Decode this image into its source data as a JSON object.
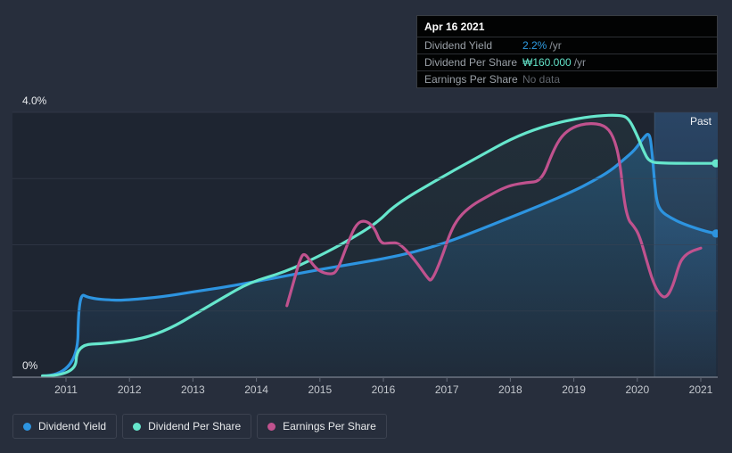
{
  "tooltip": {
    "date": "Apr 16 2021",
    "rows": [
      {
        "label": "Dividend Yield",
        "value": "2.2%",
        "suffix": "/yr",
        "color": "#2f9de4"
      },
      {
        "label": "Dividend Per Share",
        "value": "₩160.000",
        "suffix": "/yr",
        "color": "#63e2c8"
      },
      {
        "label": "Earnings Per Share",
        "value": "No data",
        "suffix": "",
        "color": "#5f646b"
      }
    ]
  },
  "axis": {
    "y_top": "4.0%",
    "y_bottom": "0%",
    "years": [
      "2011",
      "2012",
      "2013",
      "2014",
      "2015",
      "2016",
      "2017",
      "2018",
      "2019",
      "2020",
      "2021"
    ]
  },
  "past_label": "Past",
  "legend": [
    {
      "label": "Dividend Yield",
      "color": "#2d94e0"
    },
    {
      "label": "Dividend Per Share",
      "color": "#66e6cc"
    },
    {
      "label": "Earnings Per Share",
      "color": "#c0528e"
    }
  ],
  "colors": {
    "background": "#272e3c",
    "grid": "#3b4252",
    "axis_line": "#7b8290",
    "past_band": "#4898eb",
    "area_fill": "#2e94e0"
  },
  "chart_data": {
    "type": "line",
    "title": "Dividend history (yield and payments vs earnings)",
    "ylabel": "%",
    "ylim": [
      0,
      4
    ],
    "xlim": [
      2010.55,
      2021.3
    ],
    "x_ticks": [
      2011,
      2012,
      2013,
      2014,
      2015,
      2016,
      2017,
      2018,
      2019,
      2020,
      2021
    ],
    "grid": true,
    "legend_position": "bottom",
    "past_region_start_year": 2020.27,
    "series": [
      {
        "name": "Dividend Yield",
        "color": "#2d94e0",
        "end_dot": true,
        "area_fill": true,
        "fill_opacity": 0.3,
        "points": [
          [
            2010.63,
            0.02
          ],
          [
            2011.18,
            0.02
          ],
          [
            2011.2,
            1.28
          ],
          [
            2011.37,
            1.19
          ],
          [
            2011.79,
            1.16
          ],
          [
            2012.0,
            1.17
          ],
          [
            2012.49,
            1.21
          ],
          [
            2013.01,
            1.29
          ],
          [
            2013.5,
            1.36
          ],
          [
            2014.01,
            1.45
          ],
          [
            2014.46,
            1.53
          ],
          [
            2015.02,
            1.63
          ],
          [
            2015.58,
            1.72
          ],
          [
            2016.0,
            1.79
          ],
          [
            2016.49,
            1.89
          ],
          [
            2016.98,
            2.03
          ],
          [
            2017.47,
            2.21
          ],
          [
            2017.99,
            2.41
          ],
          [
            2018.49,
            2.6
          ],
          [
            2018.99,
            2.81
          ],
          [
            2019.3,
            2.96
          ],
          [
            2019.58,
            3.12
          ],
          [
            2019.79,
            3.29
          ],
          [
            2019.96,
            3.43
          ],
          [
            2020.1,
            3.62
          ],
          [
            2020.19,
            3.7
          ],
          [
            2020.23,
            3.43
          ],
          [
            2020.27,
            2.96
          ],
          [
            2020.31,
            2.63
          ],
          [
            2020.38,
            2.5
          ],
          [
            2020.52,
            2.41
          ],
          [
            2020.71,
            2.32
          ],
          [
            2020.92,
            2.25
          ],
          [
            2021.13,
            2.19
          ],
          [
            2021.24,
            2.17
          ]
        ]
      },
      {
        "name": "Dividend Per Share",
        "color": "#66e6cc",
        "end_dot": true,
        "area_fill": true,
        "fill_opacity": 0.05,
        "points": [
          [
            2010.63,
            0.02
          ],
          [
            2011.15,
            0.02
          ],
          [
            2011.17,
            0.49
          ],
          [
            2011.65,
            0.51
          ],
          [
            2012.21,
            0.58
          ],
          [
            2012.63,
            0.73
          ],
          [
            2013.05,
            0.96
          ],
          [
            2013.47,
            1.2
          ],
          [
            2013.89,
            1.43
          ],
          [
            2014.45,
            1.59
          ],
          [
            2014.97,
            1.82
          ],
          [
            2015.44,
            2.06
          ],
          [
            2015.9,
            2.33
          ],
          [
            2016.18,
            2.6
          ],
          [
            2016.84,
            2.98
          ],
          [
            2017.54,
            3.35
          ],
          [
            2018.01,
            3.6
          ],
          [
            2018.49,
            3.78
          ],
          [
            2018.95,
            3.89
          ],
          [
            2019.37,
            3.95
          ],
          [
            2019.72,
            3.96
          ],
          [
            2019.86,
            3.92
          ],
          [
            2020.0,
            3.65
          ],
          [
            2020.1,
            3.41
          ],
          [
            2020.19,
            3.25
          ],
          [
            2020.42,
            3.23
          ],
          [
            2021.24,
            3.23
          ]
        ]
      },
      {
        "name": "Earnings Per Share",
        "color": "#c0528e",
        "end_dot": false,
        "area_fill": false,
        "fill_opacity": 0,
        "points": [
          [
            2014.48,
            1.08
          ],
          [
            2014.6,
            1.49
          ],
          [
            2014.68,
            1.76
          ],
          [
            2014.75,
            1.89
          ],
          [
            2014.88,
            1.71
          ],
          [
            2014.99,
            1.6
          ],
          [
            2015.16,
            1.55
          ],
          [
            2015.27,
            1.59
          ],
          [
            2015.44,
            2.03
          ],
          [
            2015.58,
            2.33
          ],
          [
            2015.72,
            2.37
          ],
          [
            2015.86,
            2.26
          ],
          [
            2015.96,
            2.01
          ],
          [
            2016.11,
            2.03
          ],
          [
            2016.25,
            2.03
          ],
          [
            2016.49,
            1.78
          ],
          [
            2016.7,
            1.49
          ],
          [
            2016.76,
            1.45
          ],
          [
            2016.91,
            1.78
          ],
          [
            2017.05,
            2.18
          ],
          [
            2017.19,
            2.42
          ],
          [
            2017.4,
            2.6
          ],
          [
            2017.62,
            2.72
          ],
          [
            2017.83,
            2.83
          ],
          [
            2018.01,
            2.9
          ],
          [
            2018.25,
            2.94
          ],
          [
            2018.49,
            2.96
          ],
          [
            2018.67,
            3.41
          ],
          [
            2018.81,
            3.65
          ],
          [
            2018.99,
            3.78
          ],
          [
            2019.23,
            3.84
          ],
          [
            2019.48,
            3.81
          ],
          [
            2019.62,
            3.65
          ],
          [
            2019.72,
            3.3
          ],
          [
            2019.79,
            2.67
          ],
          [
            2019.86,
            2.37
          ],
          [
            2019.93,
            2.3
          ],
          [
            2020.03,
            2.15
          ],
          [
            2020.14,
            1.78
          ],
          [
            2020.25,
            1.43
          ],
          [
            2020.35,
            1.25
          ],
          [
            2020.45,
            1.19
          ],
          [
            2020.56,
            1.37
          ],
          [
            2020.66,
            1.71
          ],
          [
            2020.73,
            1.82
          ],
          [
            2020.84,
            1.9
          ],
          [
            2021.0,
            1.95
          ]
        ]
      }
    ]
  }
}
